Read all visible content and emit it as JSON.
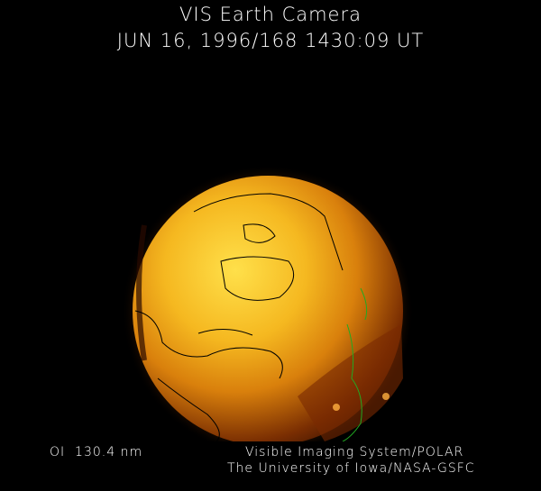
{
  "header": {
    "title": "VIS Earth Camera",
    "timestamp": "JUN 16, 1996/168 1430:09 UT"
  },
  "footer": {
    "filter": "OI  130.4 nm",
    "instrument": "Visible Imaging System/POLAR",
    "institution": "The University of Iowa/NASA-GSFC"
  },
  "colors": {
    "background": "#000000",
    "glow_bright": "#ffd23a",
    "glow_mid": "#e08a10",
    "glow_dark": "#5a1e00",
    "coastline": "#000000",
    "coastline_night": "#22aa22"
  }
}
